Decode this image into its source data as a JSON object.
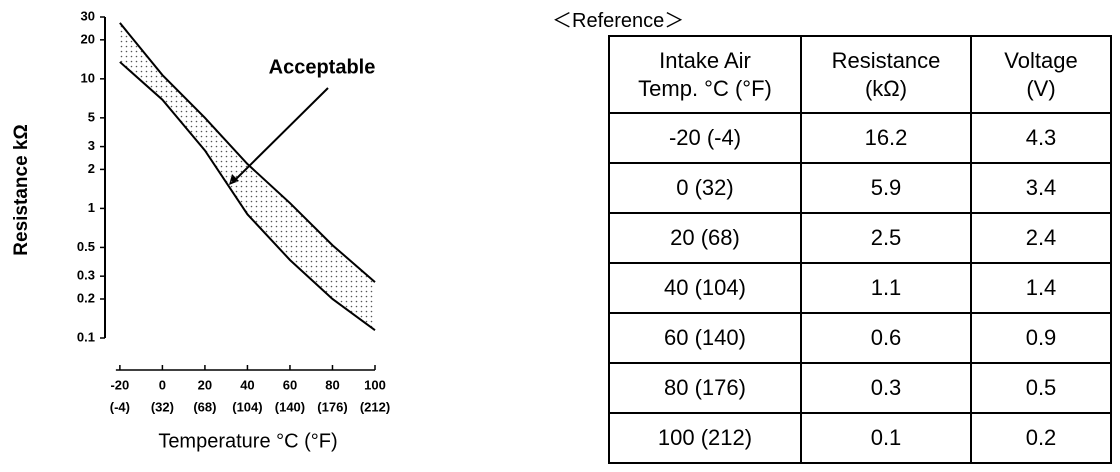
{
  "chart_data": {
    "type": "band",
    "y_label": "Resistance kΩ",
    "x_label": "Temperature °C (°F)",
    "annotation": "Acceptable",
    "log_y": true,
    "x": [
      -20,
      0,
      20,
      40,
      60,
      80,
      100
    ],
    "upper": [
      27,
      10.7,
      5,
      2.2,
      1.1,
      0.52,
      0.27
    ],
    "lower": [
      13.5,
      6.9,
      2.8,
      0.9,
      0.4,
      0.2,
      0.115
    ],
    "color": "#000000",
    "xlim": [
      -27,
      100
    ],
    "ylim": [
      0.1,
      30
    ],
    "xticks": [
      -20,
      0,
      20,
      40,
      60,
      80,
      100
    ],
    "xtick_sublabels": [
      "(-4)",
      "(32)",
      "(68)",
      "(104)",
      "(140)",
      "(176)",
      "(212)"
    ],
    "yticks": [
      0.1,
      0.2,
      0.3,
      0.5,
      1,
      2,
      3,
      5,
      10,
      20,
      30
    ]
  },
  "table": {
    "title": "＜Reference＞",
    "header": [
      "Intake Air\nTemp. °C (°F)",
      "Resistance\n(kΩ)",
      "Voltage\n(V)"
    ],
    "rows": [
      [
        "-20 (-4)",
        "16.2",
        "4.3"
      ],
      [
        "0 (32)",
        "5.9",
        "3.4"
      ],
      [
        "20 (68)",
        "2.5",
        "2.4"
      ],
      [
        "40 (104)",
        "1.1",
        "1.4"
      ],
      [
        "60 (140)",
        "0.6",
        "0.9"
      ],
      [
        "80 (176)",
        "0.3",
        "0.5"
      ],
      [
        "100 (212)",
        "0.1",
        "0.2"
      ]
    ]
  }
}
